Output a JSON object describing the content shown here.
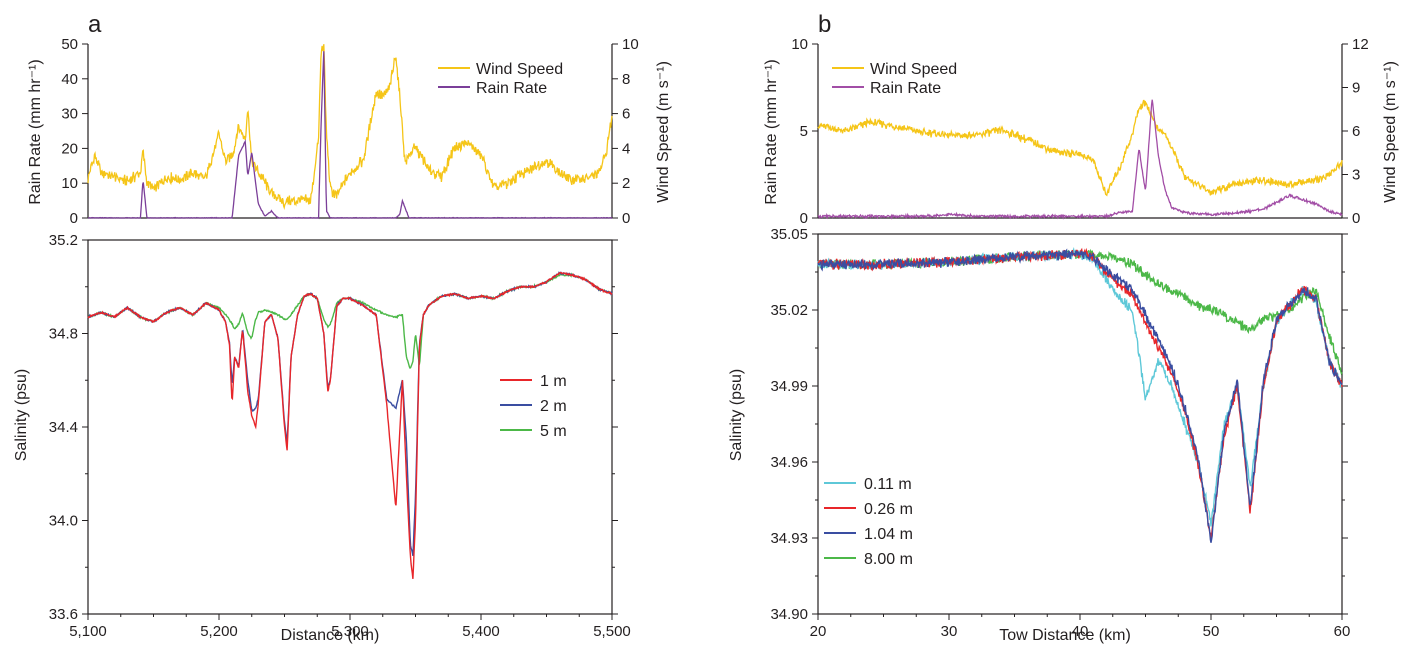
{
  "panels": [
    {
      "letter": "a",
      "top": {
        "left_label": "Rain Rate (mm hr⁻¹)",
        "right_label": "Wind Speed (m s⁻¹)",
        "left_ticks": [
          "0",
          "10",
          "20",
          "30",
          "40",
          "50"
        ],
        "left_range": [
          0,
          50
        ],
        "right_ticks": [
          "0",
          "2",
          "4",
          "6",
          "8",
          "10"
        ],
        "right_range": [
          0,
          10
        ],
        "legend": [
          {
            "label": "Wind Speed",
            "color": "#f5c518"
          },
          {
            "label": "Rain Rate",
            "color": "#7b3f99"
          }
        ]
      },
      "bottom": {
        "y_label": "Salinity (psu)",
        "y_ticks": [
          "33.6",
          "34.0",
          "34.4",
          "34.8",
          "35.2"
        ],
        "y_range": [
          33.6,
          35.2
        ],
        "x_label": "Distance (km)",
        "x_ticks": [
          "5,100",
          "5,200",
          "5,300",
          "5,400",
          "5,500"
        ],
        "x_range": [
          5100,
          5500
        ],
        "legend": [
          {
            "label": "1 m",
            "color": "#e8262a"
          },
          {
            "label": "2 m",
            "color": "#3a4ea1"
          },
          {
            "label": "5 m",
            "color": "#4cb848"
          }
        ]
      }
    },
    {
      "letter": "b",
      "top": {
        "left_label": "Rain Rate (mm hr⁻¹)",
        "right_label": "Wind Speed (m s⁻¹)",
        "left_ticks": [
          "0",
          "5",
          "10"
        ],
        "left_range": [
          0,
          10
        ],
        "right_ticks": [
          "0",
          "3",
          "6",
          "9",
          "12"
        ],
        "right_range": [
          0,
          12
        ],
        "legend": [
          {
            "label": "Wind Speed",
            "color": "#f5c518"
          },
          {
            "label": "Rain Rate",
            "color": "#a24ea6"
          }
        ]
      },
      "bottom": {
        "y_label": "Salinity (psu)",
        "y_ticks": [
          "34.90",
          "34.93",
          "34.96",
          "34.99",
          "35.02",
          "35.05"
        ],
        "y_range": [
          34.9,
          35.05
        ],
        "x_label": "Tow Distance (km)",
        "x_ticks": [
          "20",
          "30",
          "40",
          "50",
          "60"
        ],
        "x_range": [
          20,
          60
        ],
        "legend": [
          {
            "label": "0.11 m",
            "color": "#5ec8d8"
          },
          {
            "label": "0.26 m",
            "color": "#e8262a"
          },
          {
            "label": "1.04 m",
            "color": "#3a4ea1"
          },
          {
            "label": "8.00 m",
            "color": "#4cb848"
          }
        ]
      }
    }
  ],
  "chart_data": [
    {
      "type": "line",
      "panel": "a-top",
      "x": [
        5100,
        5105,
        5110,
        5120,
        5130,
        5140,
        5142,
        5145,
        5150,
        5160,
        5170,
        5180,
        5190,
        5200,
        5205,
        5210,
        5215,
        5220,
        5222,
        5225,
        5230,
        5235,
        5240,
        5245,
        5250,
        5260,
        5270,
        5276,
        5278,
        5280,
        5282,
        5285,
        5290,
        5300,
        5310,
        5320,
        5325,
        5330,
        5335,
        5338,
        5340,
        5342,
        5345,
        5350,
        5360,
        5370,
        5380,
        5390,
        5400,
        5410,
        5420,
        5430,
        5440,
        5450,
        5460,
        5470,
        5480,
        5490,
        5495,
        5500
      ],
      "series": [
        {
          "name": "Wind Speed",
          "axis": "right",
          "values": [
            2.2,
            3.6,
            2.6,
            2.4,
            2.1,
            2.6,
            3.8,
            2.0,
            1.6,
            2.4,
            2.2,
            2.6,
            2.3,
            4.8,
            3.3,
            3.6,
            5.2,
            4.6,
            6.3,
            3.3,
            2.6,
            2.1,
            1.4,
            1.1,
            0.9,
            1.0,
            1.0,
            4.6,
            9.6,
            9.8,
            5.0,
            1.6,
            1.3,
            2.6,
            3.3,
            7.2,
            7.0,
            7.4,
            9.4,
            7.0,
            5.2,
            3.2,
            3.6,
            4.1,
            2.8,
            2.4,
            4.1,
            4.3,
            3.6,
            1.7,
            2.0,
            2.5,
            2.9,
            3.3,
            2.6,
            2.2,
            2.3,
            2.5,
            3.6,
            5.8
          ]
        },
        {
          "name": "Rain Rate",
          "axis": "left",
          "values": [
            0,
            0,
            0,
            0,
            0,
            0,
            11,
            0,
            0,
            0,
            0,
            0,
            0,
            0,
            0,
            0,
            18,
            22,
            12,
            19,
            4,
            0.5,
            2,
            0,
            0,
            0,
            0,
            0,
            28,
            48,
            2,
            0,
            0,
            0,
            0,
            0,
            0,
            0,
            0,
            1,
            5,
            3,
            0,
            0,
            0,
            0,
            0,
            0,
            0,
            0,
            0,
            0,
            0,
            0,
            0,
            0,
            0,
            0,
            0,
            0
          ]
        }
      ]
    },
    {
      "type": "line",
      "panel": "a-bottom",
      "x": [
        5100,
        5110,
        5120,
        5130,
        5140,
        5150,
        5160,
        5170,
        5180,
        5190,
        5200,
        5205,
        5208,
        5210,
        5212,
        5215,
        5218,
        5222,
        5225,
        5228,
        5230,
        5235,
        5240,
        5245,
        5250,
        5252,
        5255,
        5260,
        5265,
        5270,
        5275,
        5280,
        5283,
        5285,
        5290,
        5295,
        5300,
        5310,
        5320,
        5328,
        5335,
        5340,
        5343,
        5346,
        5348,
        5350,
        5353,
        5356,
        5360,
        5370,
        5380,
        5390,
        5400,
        5410,
        5420,
        5430,
        5440,
        5450,
        5460,
        5470,
        5480,
        5490,
        5500
      ],
      "series": [
        {
          "name": "1 m",
          "values": [
            34.87,
            34.89,
            34.87,
            34.91,
            34.87,
            34.85,
            34.89,
            34.91,
            34.88,
            34.93,
            34.9,
            34.85,
            34.75,
            34.5,
            34.7,
            34.65,
            34.82,
            34.55,
            34.45,
            34.4,
            34.5,
            34.85,
            34.88,
            34.78,
            34.4,
            34.3,
            34.7,
            34.88,
            34.96,
            34.97,
            34.95,
            34.8,
            34.55,
            34.6,
            34.92,
            34.95,
            34.95,
            34.92,
            34.88,
            34.5,
            34.05,
            34.6,
            34.2,
            33.85,
            33.75,
            34.0,
            34.75,
            34.88,
            34.92,
            34.96,
            34.97,
            34.95,
            34.96,
            34.95,
            34.98,
            35.0,
            35.0,
            35.02,
            35.06,
            35.05,
            35.03,
            34.99,
            34.97
          ]
        },
        {
          "name": "2 m",
          "values": [
            34.87,
            34.89,
            34.87,
            34.91,
            34.87,
            34.85,
            34.89,
            34.91,
            34.88,
            34.93,
            34.9,
            34.85,
            34.76,
            34.58,
            34.7,
            34.66,
            34.82,
            34.6,
            34.47,
            34.48,
            34.52,
            34.85,
            34.88,
            34.78,
            34.42,
            34.33,
            34.7,
            34.88,
            34.96,
            34.97,
            34.95,
            34.8,
            34.57,
            34.6,
            34.92,
            34.95,
            34.95,
            34.92,
            34.88,
            34.52,
            34.48,
            34.6,
            34.35,
            33.9,
            33.85,
            34.1,
            34.76,
            34.88,
            34.92,
            34.96,
            34.97,
            34.95,
            34.96,
            34.95,
            34.98,
            35.0,
            35.0,
            35.02,
            35.06,
            35.05,
            35.03,
            34.99,
            34.97
          ]
        },
        {
          "name": "5 m",
          "values": [
            34.87,
            34.89,
            34.87,
            34.91,
            34.87,
            34.85,
            34.89,
            34.91,
            34.88,
            34.93,
            34.91,
            34.88,
            34.86,
            34.84,
            34.82,
            34.84,
            34.89,
            34.8,
            34.78,
            34.86,
            34.89,
            34.9,
            34.89,
            34.88,
            34.86,
            34.86,
            34.88,
            34.92,
            34.96,
            34.97,
            34.95,
            34.86,
            34.83,
            34.84,
            34.93,
            34.95,
            34.95,
            34.93,
            34.9,
            34.88,
            34.87,
            34.88,
            34.7,
            34.65,
            34.68,
            34.8,
            34.66,
            34.88,
            34.92,
            34.96,
            34.97,
            34.95,
            34.96,
            34.95,
            34.98,
            35.0,
            35.0,
            35.02,
            35.05,
            35.05,
            35.03,
            34.99,
            34.97
          ]
        }
      ]
    },
    {
      "type": "line",
      "panel": "b-top",
      "x": [
        20,
        22,
        24,
        26,
        28,
        30,
        32,
        34,
        36,
        38,
        40,
        41,
        42,
        43,
        44,
        44.5,
        45,
        45.5,
        46,
        46.5,
        47,
        48,
        50,
        52,
        54,
        56,
        58,
        59,
        60
      ],
      "series": [
        {
          "name": "Wind Speed",
          "axis": "right",
          "values": [
            6.4,
            6.0,
            6.6,
            6.3,
            5.9,
            5.7,
            5.7,
            6.1,
            5.4,
            4.6,
            4.4,
            4.0,
            1.6,
            3.4,
            5.8,
            7.6,
            8.0,
            7.0,
            6.0,
            5.8,
            4.8,
            2.8,
            1.8,
            2.4,
            2.6,
            2.3,
            2.6,
            3.0,
            3.8
          ]
        },
        {
          "name": "Rain Rate",
          "axis": "left",
          "values": [
            0.1,
            0.1,
            0.1,
            0.1,
            0.1,
            0.2,
            0.1,
            0.1,
            0.1,
            0.1,
            0.1,
            0.1,
            0.1,
            0.3,
            0.4,
            4.0,
            1.5,
            6.9,
            3.5,
            1.6,
            0.6,
            0.3,
            0.2,
            0.3,
            0.5,
            1.3,
            0.8,
            0.4,
            0.2
          ]
        }
      ]
    },
    {
      "type": "line",
      "panel": "b-bottom",
      "x": [
        20,
        25,
        30,
        35,
        40,
        41,
        42,
        43,
        44,
        45,
        46,
        47,
        48,
        49,
        50,
        51,
        52,
        53,
        54,
        55,
        56,
        57,
        58,
        59,
        60
      ],
      "series": [
        {
          "name": "0.11 m",
          "values": [
            35.038,
            35.038,
            35.039,
            35.041,
            35.042,
            35.04,
            35.032,
            35.025,
            35.02,
            34.985,
            35.0,
            34.99,
            34.975,
            34.96,
            34.935,
            34.975,
            34.99,
            34.95,
            34.99,
            35.015,
            35.022,
            35.028,
            35.024,
            35.0,
            34.99
          ]
        },
        {
          "name": "0.26 m",
          "values": [
            35.038,
            35.038,
            35.039,
            35.041,
            35.042,
            35.041,
            35.035,
            35.03,
            35.026,
            35.015,
            35.005,
            34.995,
            34.98,
            34.96,
            34.93,
            34.97,
            34.99,
            34.94,
            34.99,
            35.015,
            35.022,
            35.028,
            35.025,
            35.0,
            34.99
          ]
        },
        {
          "name": "1.04 m",
          "values": [
            35.038,
            35.038,
            35.039,
            35.041,
            35.042,
            35.041,
            35.036,
            35.032,
            35.028,
            35.018,
            35.008,
            34.998,
            34.982,
            34.962,
            34.928,
            34.972,
            34.992,
            34.942,
            34.992,
            35.016,
            35.022,
            35.028,
            35.025,
            35.0,
            34.99
          ]
        },
        {
          "name": "8.00 m",
          "values": [
            35.038,
            35.038,
            35.039,
            35.041,
            35.042,
            35.042,
            35.041,
            35.04,
            35.038,
            35.034,
            35.03,
            35.027,
            35.025,
            35.022,
            35.02,
            35.018,
            35.015,
            35.012,
            35.016,
            35.018,
            35.02,
            35.025,
            35.028,
            35.01,
            34.995
          ]
        }
      ]
    }
  ]
}
